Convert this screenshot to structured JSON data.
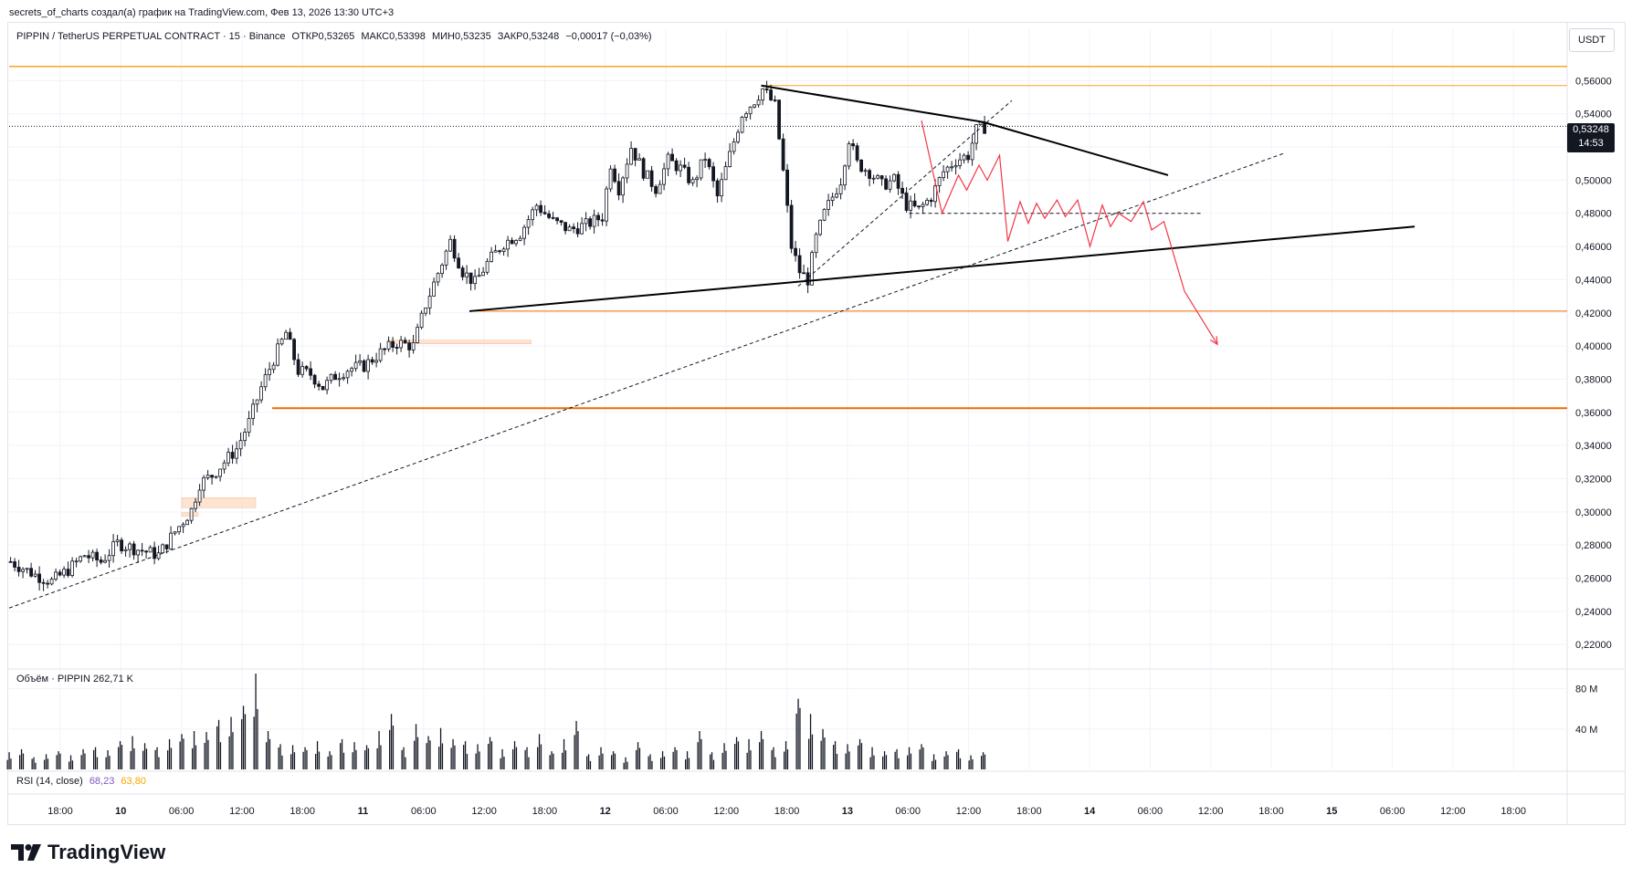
{
  "header": {
    "byline": "secrets_of_charts создал(а) график на TradingView.com, Фев 13, 2026 13:30 UTC+3"
  },
  "legend": {
    "symbol": "PIPPIN / TetherUS PERPETUAL CONTRACT · 15 · Binance",
    "open": "ОТКР0,53265",
    "high": "МАКС0,53398",
    "low": "МИН0,53235",
    "close": "ЗАКР0,53248",
    "change": "−0,00017 (−0,03%)"
  },
  "price_axis": {
    "unit": "USDT",
    "last_price": "0,53248",
    "countdown": "14:53"
  },
  "volume": {
    "label": "Объём · PIPPIN",
    "value": "262,71 K"
  },
  "rsi": {
    "label": "RSI (14, close)",
    "value": "68,23",
    "ma": "63,80"
  },
  "branding": {
    "logo": "TradingView"
  },
  "colors": {
    "candle": "#131722",
    "support": "#ef6c00",
    "resistance": "#f5a623",
    "projection": "#f23645",
    "zone": "#fcd9bf",
    "triangle": "#000000"
  },
  "chart_data": {
    "type": "candlestick",
    "symbol": "PIPPIN/USDT",
    "interval": "15",
    "y_ticks": [
      "0,56000",
      "0,54000",
      "0,52000",
      "0,50000",
      "0,48000",
      "0,46000",
      "0,44000",
      "0,42000",
      "0,40000",
      "0,38000",
      "0,36000",
      "0,34000",
      "0,32000",
      "0,30000",
      "0,28000",
      "0,26000",
      "0,24000",
      "0,22000"
    ],
    "ylim": [
      0.208,
      0.58
    ],
    "x_ticks": [
      "18:00",
      "10",
      "06:00",
      "12:00",
      "18:00",
      "11",
      "06:00",
      "12:00",
      "18:00",
      "12",
      "06:00",
      "12:00",
      "18:00",
      "13",
      "06:00",
      "12:00",
      "18:00",
      "14",
      "06:00",
      "12:00",
      "18:00",
      "15",
      "06:00",
      "12:00",
      "18:00"
    ],
    "volume_ticks": [
      "80 M",
      "40 M"
    ],
    "volume_max_m": 95,
    "price_path": [
      [
        0,
        0.27
      ],
      [
        6,
        0.262
      ],
      [
        10,
        0.258
      ],
      [
        14,
        0.265
      ],
      [
        18,
        0.274
      ],
      [
        22,
        0.27
      ],
      [
        26,
        0.281
      ],
      [
        30,
        0.278
      ],
      [
        36,
        0.274
      ],
      [
        40,
        0.288
      ],
      [
        44,
        0.301
      ],
      [
        46,
        0.317
      ],
      [
        49,
        0.322
      ],
      [
        52,
        0.33
      ],
      [
        55,
        0.338
      ],
      [
        58,
        0.354
      ],
      [
        61,
        0.375
      ],
      [
        64,
        0.392
      ],
      [
        67,
        0.408
      ],
      [
        70,
        0.385
      ],
      [
        73,
        0.383
      ],
      [
        76,
        0.375
      ],
      [
        79,
        0.382
      ],
      [
        82,
        0.386
      ],
      [
        86,
        0.388
      ],
      [
        90,
        0.396
      ],
      [
        94,
        0.402
      ],
      [
        98,
        0.4
      ],
      [
        101,
        0.425
      ],
      [
        104,
        0.444
      ],
      [
        107,
        0.463
      ],
      [
        110,
        0.445
      ],
      [
        113,
        0.438
      ],
      [
        116,
        0.45
      ],
      [
        120,
        0.462
      ],
      [
        124,
        0.468
      ],
      [
        128,
        0.485
      ],
      [
        132,
        0.475
      ],
      [
        136,
        0.47
      ],
      [
        140,
        0.473
      ],
      [
        144,
        0.478
      ],
      [
        146,
        0.51
      ],
      [
        148,
        0.495
      ],
      [
        151,
        0.52
      ],
      [
        154,
        0.505
      ],
      [
        157,
        0.495
      ],
      [
        160,
        0.512
      ],
      [
        163,
        0.507
      ],
      [
        166,
        0.498
      ],
      [
        169,
        0.514
      ],
      [
        172,
        0.49
      ],
      [
        175,
        0.515
      ],
      [
        178,
        0.54
      ],
      [
        181,
        0.548
      ],
      [
        183,
        0.555
      ],
      [
        186,
        0.545
      ],
      [
        188,
        0.505
      ],
      [
        190,
        0.46
      ],
      [
        192,
        0.445
      ],
      [
        194,
        0.44
      ],
      [
        196,
        0.465
      ],
      [
        198,
        0.48
      ],
      [
        200,
        0.49
      ],
      [
        202,
        0.5
      ],
      [
        204,
        0.525
      ],
      [
        206,
        0.51
      ],
      [
        209,
        0.505
      ],
      [
        212,
        0.497
      ],
      [
        215,
        0.5
      ],
      [
        218,
        0.485
      ],
      [
        221,
        0.482
      ],
      [
        224,
        0.49
      ],
      [
        227,
        0.505
      ],
      [
        230,
        0.512
      ],
      [
        233,
        0.515
      ],
      [
        235,
        0.53
      ],
      [
        237,
        0.532
      ]
    ],
    "volumes_m": [
      17,
      20,
      12,
      15,
      18,
      14,
      20,
      22,
      19,
      28,
      33,
      26,
      22,
      30,
      35,
      38,
      37,
      49,
      52,
      63,
      95,
      38,
      25,
      24,
      22,
      28,
      18,
      30,
      27,
      24,
      38,
      55,
      22,
      45,
      33,
      41,
      30,
      28,
      25,
      32,
      20,
      28,
      22,
      35,
      18,
      30,
      48,
      15,
      22,
      18,
      12,
      27,
      15,
      18,
      22,
      18,
      38,
      17,
      26,
      32,
      30,
      38,
      22,
      28,
      70,
      55,
      40,
      28,
      25,
      30,
      22,
      18,
      20,
      22,
      25,
      15,
      18,
      20,
      14,
      17
    ],
    "annotations": {
      "resistance_line": 0.5685,
      "resistance_line_2": 0.557,
      "support_line_1": 0.421,
      "support_line_2": 0.3625,
      "marker_dotted": 0.5325,
      "triangle_upper": [
        [
          183,
          0.557
        ],
        [
          237,
          0.535
        ],
        [
          282,
          0.503
        ]
      ],
      "triangle_lower": [
        [
          112,
          0.421
        ],
        [
          342,
          0.472
        ]
      ],
      "trend_dashed_1": [
        [
          0,
          0.242
        ],
        [
          310,
          0.516
        ]
      ],
      "trend_dashed_2": [
        [
          192,
          0.436
        ],
        [
          244,
          0.548
        ]
      ],
      "dashed_horizontal": [
        [
          219,
          0.48
        ],
        [
          290,
          0.48
        ]
      ],
      "projection": [
        [
          222,
          0.536
        ],
        [
          227,
          0.48
        ],
        [
          231,
          0.503
        ],
        [
          233,
          0.494
        ],
        [
          236,
          0.509
        ],
        [
          238,
          0.5
        ],
        [
          241,
          0.515
        ],
        [
          243,
          0.463
        ],
        [
          246,
          0.487
        ],
        [
          248,
          0.474
        ],
        [
          250,
          0.486
        ],
        [
          252,
          0.477
        ],
        [
          255,
          0.488
        ],
        [
          257,
          0.478
        ],
        [
          260,
          0.488
        ],
        [
          263,
          0.46
        ],
        [
          266,
          0.485
        ],
        [
          268,
          0.472
        ],
        [
          270,
          0.48
        ],
        [
          273,
          0.475
        ],
        [
          276,
          0.487
        ],
        [
          278,
          0.47
        ],
        [
          281,
          0.475
        ],
        [
          286,
          0.433
        ],
        [
          294,
          0.401
        ]
      ],
      "zones": [
        [
          92,
          127,
          0.4035,
          0.4015
        ],
        [
          42,
          60,
          0.3085,
          0.3025
        ],
        [
          42,
          46,
          0.2995,
          0.2975
        ]
      ]
    }
  }
}
